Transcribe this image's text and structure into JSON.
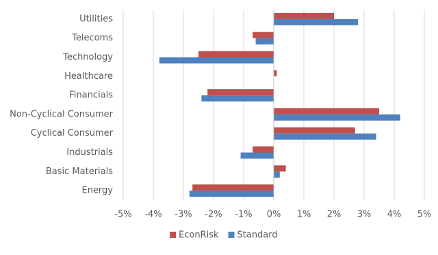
{
  "chart_data": {
    "type": "hbar",
    "categories": [
      "Utilities",
      "Telecoms",
      "Technology",
      "Healthcare",
      "Financials",
      "Non-Cyclical Consumer",
      "Cyclical Consumer",
      "Industrials",
      "Basic Materials",
      "Energy"
    ],
    "series": [
      {
        "name": "EconRisk",
        "color": "#c0504d",
        "values": [
          2.0,
          -0.7,
          -2.5,
          0.1,
          -2.2,
          3.5,
          2.7,
          -0.7,
          0.4,
          -2.7
        ]
      },
      {
        "name": "Standard",
        "color": "#4f81bd",
        "values": [
          2.8,
          -0.6,
          -3.8,
          0,
          -2.4,
          4.2,
          3.4,
          -1.1,
          0.2,
          -2.8
        ]
      }
    ],
    "xlim": [
      -5,
      5
    ],
    "xticks": [
      {
        "value": -5,
        "label": "-5%"
      },
      {
        "value": -4,
        "label": "-4%"
      },
      {
        "value": -3,
        "label": "-3%"
      },
      {
        "value": -2,
        "label": "-2%"
      },
      {
        "value": -1,
        "label": "-1%"
      },
      {
        "value": 0,
        "label": "0%"
      },
      {
        "value": 1,
        "label": "1%"
      },
      {
        "value": 2,
        "label": "2%"
      },
      {
        "value": 3,
        "label": "3%"
      },
      {
        "value": 4,
        "label": "4%"
      },
      {
        "value": 5,
        "label": "5%"
      }
    ],
    "grid": true,
    "legend": "bottom"
  }
}
